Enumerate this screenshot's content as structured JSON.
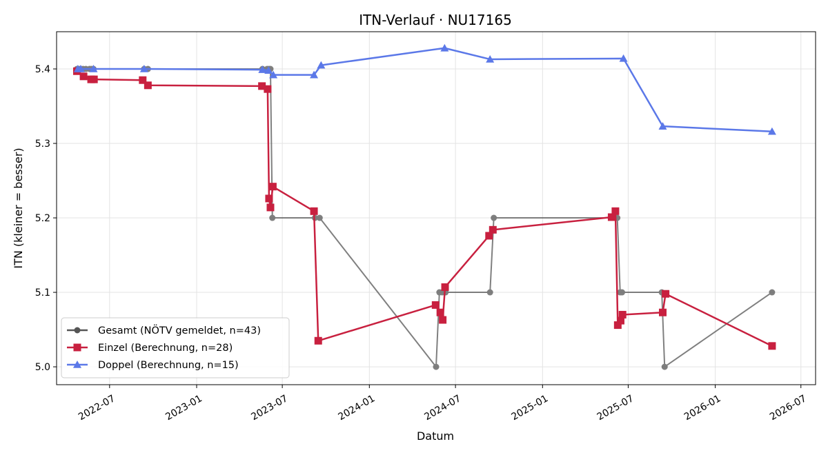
{
  "chart_data": {
    "type": "line",
    "title": "ITN-Verlauf · NU17165",
    "xlabel": "Datum",
    "ylabel": "ITN  (kleiner = besser)",
    "xlim": [
      "2022-03-11",
      "2026-08-01"
    ],
    "ylim": [
      4.976,
      5.45
    ],
    "x_ticks": [
      "2022-07",
      "2023-01",
      "2023-07",
      "2024-01",
      "2024-07",
      "2025-01",
      "2025-07",
      "2026-01",
      "2026-07"
    ],
    "y_ticks": [
      "5.0",
      "5.1",
      "5.2",
      "5.3",
      "5.4"
    ],
    "grid": true,
    "legend_position": "lower-left",
    "series": [
      {
        "name": "Gesamt (NÖTV gemeldet, n=43)",
        "color": "#555555",
        "marker": "circle",
        "points": [
          [
            "2022-04-23",
            5.4
          ],
          [
            "2022-04-27",
            5.4
          ],
          [
            "2022-05-01",
            5.4
          ],
          [
            "2022-05-06",
            5.4
          ],
          [
            "2022-05-12",
            5.4
          ],
          [
            "2022-05-20",
            5.4
          ],
          [
            "2022-05-24",
            5.4
          ],
          [
            "2022-05-28",
            5.4
          ],
          [
            "2022-09-12",
            5.4
          ],
          [
            "2022-09-20",
            5.4
          ],
          [
            "2023-05-20",
            5.4
          ],
          [
            "2023-05-30",
            5.4
          ],
          [
            "2023-06-03",
            5.4
          ],
          [
            "2023-06-06",
            5.4
          ],
          [
            "2023-06-10",
            5.2
          ],
          [
            "2023-09-08",
            5.2
          ],
          [
            "2023-09-18",
            5.2
          ],
          [
            "2024-05-21",
            5.0
          ],
          [
            "2024-05-28",
            5.1
          ],
          [
            "2024-06-03",
            5.1
          ],
          [
            "2024-06-10",
            5.1
          ],
          [
            "2024-09-12",
            5.1
          ],
          [
            "2024-09-20",
            5.2
          ],
          [
            "2025-06-08",
            5.2
          ],
          [
            "2025-06-14",
            5.1
          ],
          [
            "2025-06-18",
            5.1
          ],
          [
            "2025-09-10",
            5.1
          ],
          [
            "2025-09-16",
            5.0
          ],
          [
            "2026-05-01",
            5.1
          ]
        ]
      },
      {
        "name": "Einzel (Berechnung, n=28)",
        "color": "#c8203f",
        "marker": "square",
        "points": [
          [
            "2022-04-23",
            5.397
          ],
          [
            "2022-05-07",
            5.39
          ],
          [
            "2022-05-23",
            5.386
          ],
          [
            "2022-05-29",
            5.386
          ],
          [
            "2022-09-09",
            5.385
          ],
          [
            "2022-09-20",
            5.378
          ],
          [
            "2023-05-19",
            5.377
          ],
          [
            "2023-05-31",
            5.373
          ],
          [
            "2023-06-03",
            5.226
          ],
          [
            "2023-06-06",
            5.214
          ],
          [
            "2023-06-11",
            5.242
          ],
          [
            "2023-09-06",
            5.209
          ],
          [
            "2023-09-15",
            5.035
          ],
          [
            "2024-05-20",
            5.083
          ],
          [
            "2024-05-30",
            5.073
          ],
          [
            "2024-06-04",
            5.063
          ],
          [
            "2024-06-09",
            5.107
          ],
          [
            "2024-09-10",
            5.176
          ],
          [
            "2024-09-18",
            5.184
          ],
          [
            "2025-05-27",
            5.201
          ],
          [
            "2025-06-04",
            5.209
          ],
          [
            "2025-06-09",
            5.056
          ],
          [
            "2025-06-15",
            5.062
          ],
          [
            "2025-06-19",
            5.07
          ],
          [
            "2025-09-12",
            5.073
          ],
          [
            "2025-09-18",
            5.098
          ],
          [
            "2026-05-01",
            5.028
          ]
        ]
      },
      {
        "name": "Doppel (Berechnung, n=15)",
        "color": "#5b78e8",
        "marker": "triangle",
        "points": [
          [
            "2022-04-25",
            5.4
          ],
          [
            "2022-05-01",
            5.4
          ],
          [
            "2022-05-28",
            5.4
          ],
          [
            "2022-09-12",
            5.4
          ],
          [
            "2023-05-20",
            5.399
          ],
          [
            "2023-06-02",
            5.398
          ],
          [
            "2023-06-12",
            5.392
          ],
          [
            "2023-09-06",
            5.392
          ],
          [
            "2023-09-21",
            5.405
          ],
          [
            "2024-06-08",
            5.428
          ],
          [
            "2024-09-12",
            5.413
          ],
          [
            "2025-06-21",
            5.414
          ],
          [
            "2025-09-12",
            5.323
          ],
          [
            "2026-05-01",
            5.316
          ]
        ]
      }
    ]
  }
}
